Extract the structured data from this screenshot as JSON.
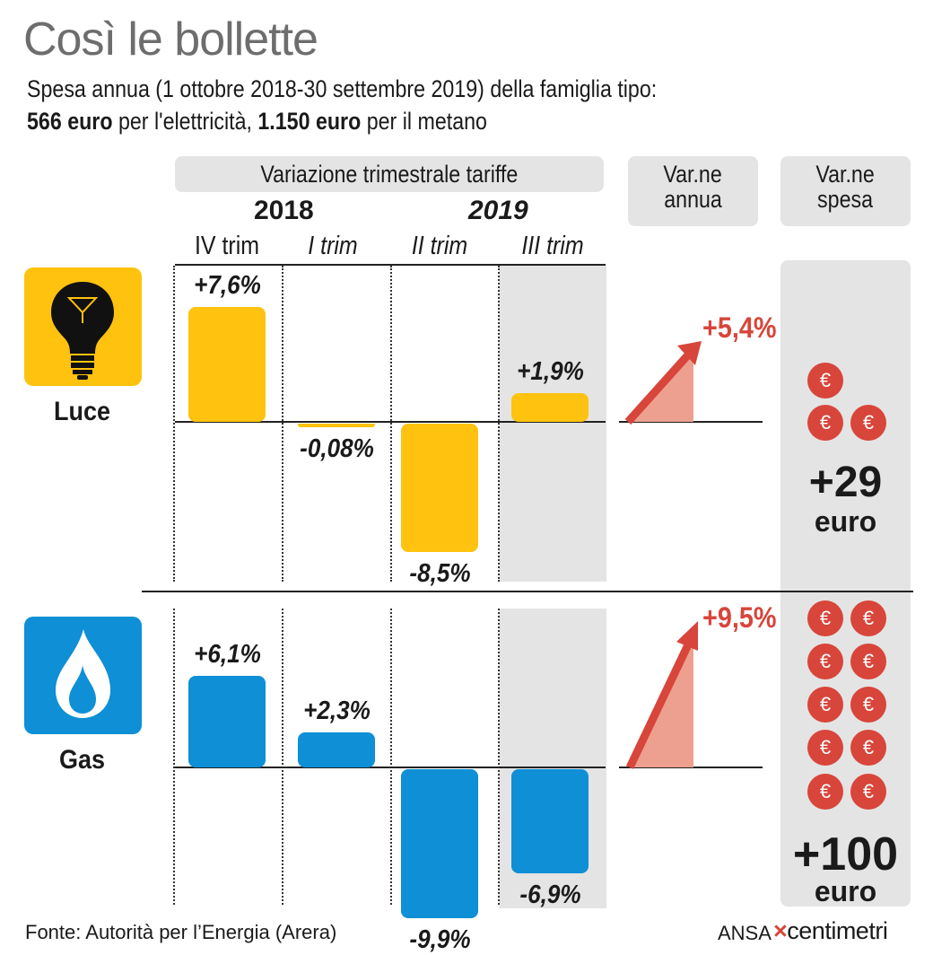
{
  "title": "Così le bollette",
  "subtitle": {
    "line1": "Spesa annua (1 ottobre 2018-30 settembre 2019) della famiglia tipo:",
    "line2_a": "566 euro",
    "line2_b": " per l'elettricità, ",
    "line2_c": "1.150 euro",
    "line2_d": " per il metano"
  },
  "headers": {
    "variazione": "Variazione trimestrale tariffe",
    "annua_1": "Var.ne",
    "annua_2": "annua",
    "spesa_1": "Var.ne",
    "spesa_2": "spesa",
    "year_2018": "2018",
    "year_2019": "2019"
  },
  "chart_data": {
    "type": "bar",
    "title": "Variazione trimestrale tariffe",
    "categories": [
      "IV trim",
      "I trim",
      "II trim",
      "III trim"
    ],
    "series": [
      {
        "name": "Luce",
        "values": [
          7.6,
          -0.08,
          -8.5,
          1.9
        ],
        "labels": [
          "+7,6%",
          "-0,08%",
          "-8,5%",
          "+1,9%"
        ],
        "annual_variation": 5.4,
        "annual_label": "+5,4%",
        "spesa_value": "+29",
        "spesa_unit": "euro",
        "coins": 3
      },
      {
        "name": "Gas",
        "values": [
          6.1,
          2.3,
          -9.9,
          -6.9
        ],
        "labels": [
          "+6,1%",
          "+2,3%",
          "-9,9%",
          "-6,9%"
        ],
        "annual_variation": 9.5,
        "annual_label": "+9,5%",
        "spesa_value": "+100",
        "spesa_unit": "euro",
        "coins": 10
      }
    ],
    "colors": {
      "luce": "#FFC20E",
      "gas": "#0E8FD6",
      "arrow": "#D8453A",
      "coin": "#D8453A",
      "shade": "#E4E4E4"
    }
  },
  "footer": {
    "source": "Fonte: Autorità per l’Energia (Arera)",
    "brand_a": "ANSA",
    "brand_b": "centimetri"
  }
}
